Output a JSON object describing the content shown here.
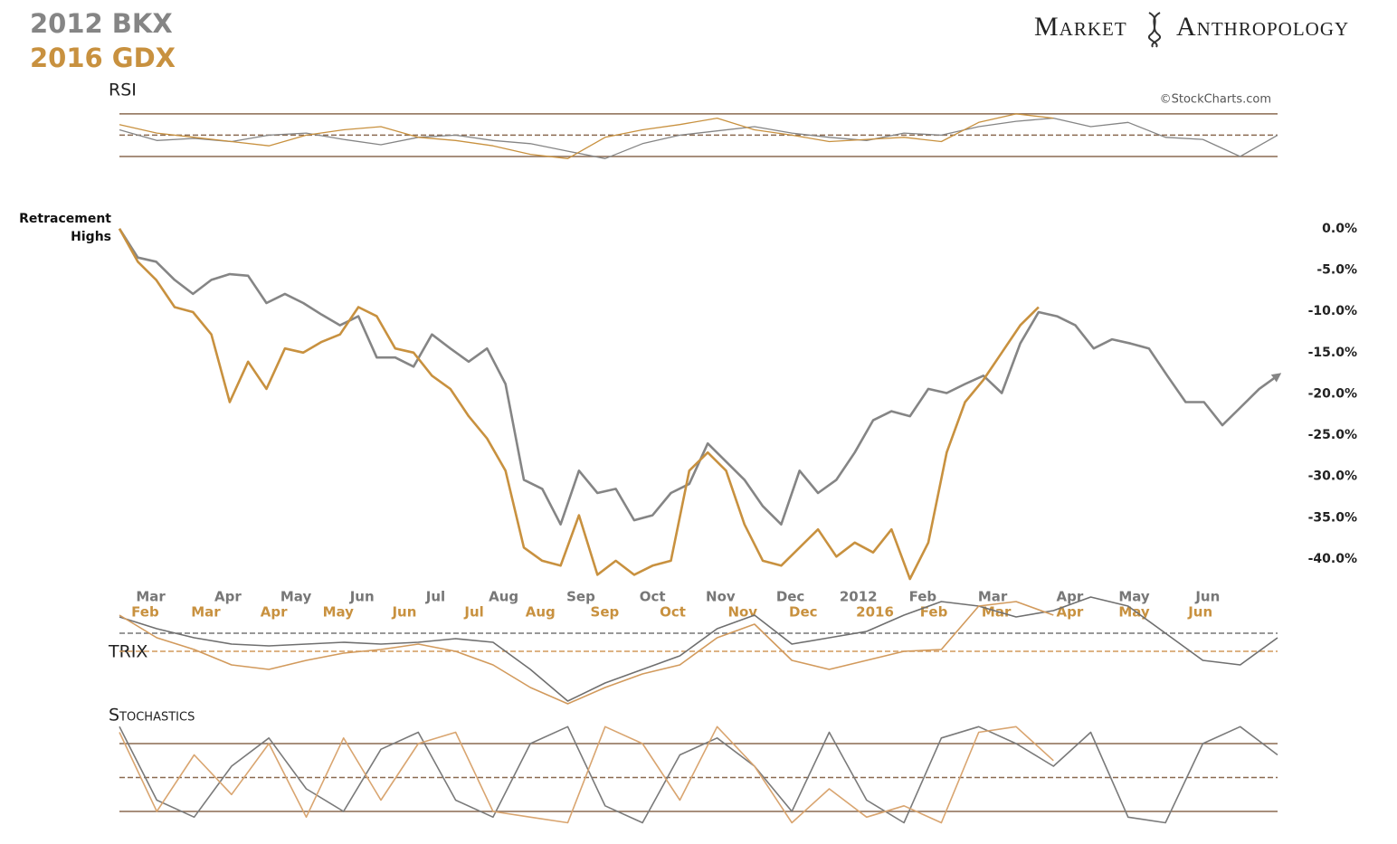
{
  "header": {
    "logo_left": "Market",
    "logo_right": "Anthropology",
    "source": "©StockCharts.com"
  },
  "chart_data": [
    {
      "type": "line",
      "annotation": "Retracement Highs",
      "xlim": [
        0,
        63
      ],
      "ylim": [
        -43.5,
        1.4
      ],
      "yticks": [
        {
          "value": 0,
          "label": "0.0%"
        },
        {
          "value": -5,
          "label": "-5.0%"
        },
        {
          "value": -10,
          "label": "-10.0%"
        },
        {
          "value": -15,
          "label": "-15.0%"
        },
        {
          "value": -20,
          "label": "-20.0%"
        },
        {
          "value": -25,
          "label": "-25.0%"
        },
        {
          "value": -30,
          "label": "-30.0%"
        },
        {
          "value": -35,
          "label": "-35.0%"
        },
        {
          "value": -40,
          "label": "-40.0%"
        }
      ],
      "series": [
        {
          "name": "2012 BKX",
          "color": "#858585",
          "values": [
            0,
            -3.5,
            -4,
            -6.2,
            -7.9,
            -6.2,
            -5.5,
            -5.7,
            -9,
            -7.9,
            -9,
            -10.4,
            -11.7,
            -10.6,
            -15.6,
            -15.6,
            -16.7,
            -12.8,
            -14.5,
            -16.1,
            -14.5,
            -18.8,
            -30.4,
            -31.5,
            -35.8,
            -29.3,
            -32,
            -31.5,
            -35.3,
            -34.7,
            -32,
            -30.9,
            -26,
            -28.2,
            -30.4,
            -33.6,
            -35.8,
            -29.3,
            -32,
            -30.4,
            -27.1,
            -23.2,
            -22.1,
            -22.7,
            -19.4,
            -19.9,
            -18.8,
            -17.8,
            -19.9,
            -13.9,
            -10.1,
            -10.6,
            -11.7,
            -14.5,
            -13.4,
            -13.9,
            -14.5,
            -17.8,
            -21,
            -21,
            -23.8,
            -21.6,
            -19.4,
            -17.8
          ],
          "xticks": [
            {
              "value": 1.7,
              "label": "Mar"
            },
            {
              "value": 5.9,
              "label": "Apr"
            },
            {
              "value": 9.6,
              "label": "May"
            },
            {
              "value": 13.2,
              "label": "Jun"
            },
            {
              "value": 17.2,
              "label": "Jul"
            },
            {
              "value": 20.9,
              "label": "Aug"
            },
            {
              "value": 25.1,
              "label": "Sep"
            },
            {
              "value": 29.0,
              "label": "Oct"
            },
            {
              "value": 32.7,
              "label": "Nov"
            },
            {
              "value": 36.5,
              "label": "Dec"
            },
            {
              "value": 40.2,
              "label": "2012"
            },
            {
              "value": 43.7,
              "label": "Feb"
            },
            {
              "value": 47.5,
              "label": "Mar"
            },
            {
              "value": 51.7,
              "label": "Apr"
            },
            {
              "value": 55.2,
              "label": "May"
            },
            {
              "value": 59.2,
              "label": "Jun"
            }
          ]
        },
        {
          "name": "2016 GDX",
          "color": "#c8913f",
          "values": [
            0,
            -4,
            -6.2,
            -9.5,
            -10.1,
            -12.8,
            -21,
            -16.1,
            -19.4,
            -14.5,
            -15,
            -13.7,
            -12.8,
            -9.5,
            -10.6,
            -14.5,
            -15,
            -17.8,
            -19.4,
            -22.7,
            -25.4,
            -29.3,
            -38.6,
            -40.2,
            -40.8,
            -34.7,
            -41.9,
            -40.2,
            -41.9,
            -40.8,
            -40.2,
            -29.3,
            -27.1,
            -29.3,
            -35.8,
            -40.2,
            -40.8,
            -38.6,
            -36.4,
            -39.7,
            -38,
            -39.2,
            -36.4,
            -42.4,
            -38,
            -27.1,
            -21,
            -18.3,
            -15,
            -11.7,
            -9.5,
            null,
            null,
            null,
            null,
            null,
            null,
            null,
            null,
            null,
            null,
            null,
            null,
            null
          ],
          "xticks": [
            {
              "value": 1.4,
              "label": "Feb"
            },
            {
              "value": 4.7,
              "label": "Mar"
            },
            {
              "value": 8.4,
              "label": "Apr"
            },
            {
              "value": 11.9,
              "label": "May"
            },
            {
              "value": 15.5,
              "label": "Jun"
            },
            {
              "value": 19.3,
              "label": "Jul"
            },
            {
              "value": 22.9,
              "label": "Aug"
            },
            {
              "value": 26.4,
              "label": "Sep"
            },
            {
              "value": 30.1,
              "label": "Oct"
            },
            {
              "value": 33.9,
              "label": "Nov"
            },
            {
              "value": 37.2,
              "label": "Dec"
            },
            {
              "value": 41.1,
              "label": "2016"
            },
            {
              "value": 44.3,
              "label": "Feb"
            },
            {
              "value": 47.7,
              "label": "Mar"
            },
            {
              "value": 51.7,
              "label": "Apr"
            },
            {
              "value": 55.2,
              "label": "May"
            },
            {
              "value": 58.8,
              "label": "Jun"
            }
          ]
        }
      ]
    },
    {
      "type": "line",
      "title": "RSI",
      "xlim": [
        0,
        31
      ],
      "ylim": [
        10,
        75
      ],
      "levels": [
        70,
        50,
        30
      ],
      "series": [
        {
          "color": "#858585",
          "values": [
            55,
            45,
            47,
            44,
            50,
            52,
            46,
            41,
            48,
            50,
            45,
            42,
            35,
            28,
            42,
            50,
            54,
            58,
            52,
            48,
            45,
            52,
            50,
            58,
            63,
            66,
            58,
            62,
            48,
            46,
            30,
            50
          ]
        },
        {
          "color": "#c8913f",
          "values": [
            60,
            52,
            48,
            44,
            40,
            50,
            55,
            58,
            48,
            45,
            40,
            32,
            28,
            48,
            55,
            60,
            66,
            55,
            50,
            44,
            46,
            48,
            44,
            62,
            70,
            66,
            null,
            null,
            null,
            null,
            null,
            null
          ]
        }
      ]
    },
    {
      "type": "line",
      "title": "TRIX",
      "xlim": [
        0,
        31
      ],
      "ylim": [
        -1.2,
        0.6
      ],
      "y2lim": [
        -0.9,
        0.9
      ],
      "levels": [
        0
      ],
      "y2levels": [
        0
      ],
      "series": [
        {
          "color": "#6f6f6f",
          "values": [
            0.27,
            0.075,
            -0.075,
            -0.18,
            -0.21,
            -0.18,
            -0.15,
            -0.18,
            -0.15,
            -0.09,
            -0.15,
            -0.6,
            -1.125,
            -0.825,
            -0.6,
            -0.375,
            0.075,
            0.3,
            -0.18,
            -0.075,
            0.03,
            0.3,
            0.525,
            0.45,
            0.27,
            0.375,
            0.6,
            0.45,
            0,
            -0.45,
            -0.525,
            -0.075
          ]
        },
        {
          "color": "#d29a5c",
          "axis": "y2",
          "values": [
            0.6,
            0.225,
            0.03,
            -0.225,
            -0.3,
            -0.15,
            -0.03,
            0.03,
            0.12,
            0,
            -0.225,
            -0.6,
            -0.87,
            -0.6,
            -0.375,
            -0.225,
            0.225,
            0.45,
            -0.15,
            -0.3,
            -0.15,
            0,
            0.03,
            0.75,
            0.825,
            0.6,
            null,
            null,
            null,
            null,
            null,
            null
          ]
        }
      ]
    },
    {
      "type": "line",
      "title": "Stochastics",
      "xlim": [
        0,
        31
      ],
      "ylim": [
        0,
        100
      ],
      "levels": [
        80,
        50,
        20
      ],
      "series": [
        {
          "color": "#7a7a7a",
          "values": [
            95,
            30,
            15,
            60,
            85,
            40,
            20,
            75,
            90,
            30,
            15,
            80,
            95,
            25,
            10,
            70,
            85,
            60,
            20,
            90,
            30,
            10,
            85,
            95,
            80,
            60,
            90,
            15,
            10,
            80,
            95,
            70
          ]
        },
        {
          "color": "#d9a570",
          "values": [
            90,
            20,
            70,
            35,
            80,
            15,
            85,
            30,
            80,
            90,
            20,
            15,
            10,
            95,
            80,
            30,
            95,
            60,
            10,
            40,
            15,
            25,
            10,
            90,
            95,
            65,
            null,
            null,
            null,
            null,
            null,
            null
          ]
        }
      ]
    }
  ]
}
